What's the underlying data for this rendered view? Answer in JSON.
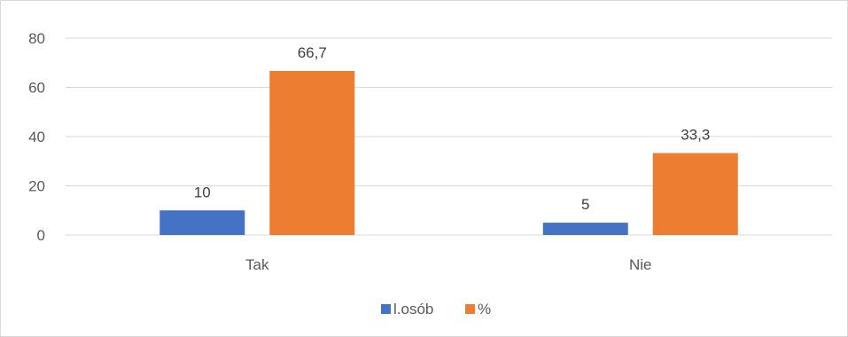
{
  "chart_data": {
    "type": "bar",
    "categories": [
      "Tak",
      "Nie"
    ],
    "series": [
      {
        "name": "l.osób",
        "values": [
          10,
          5
        ],
        "labels": [
          "10",
          "5"
        ],
        "color": "#4472c4"
      },
      {
        "name": "%",
        "values": [
          66.7,
          33.3
        ],
        "labels": [
          "66,7",
          "33,3"
        ],
        "color": "#ed7d31"
      }
    ],
    "title": "",
    "xlabel": "",
    "ylabel": "",
    "ylim": [
      0,
      80
    ],
    "yticks": [
      0,
      20,
      40,
      60,
      80
    ],
    "ytick_labels": [
      "0",
      "20",
      "40",
      "60",
      "80"
    ],
    "grid": true,
    "gridline_color": "#d9d9d9",
    "legend_position": "bottom"
  }
}
